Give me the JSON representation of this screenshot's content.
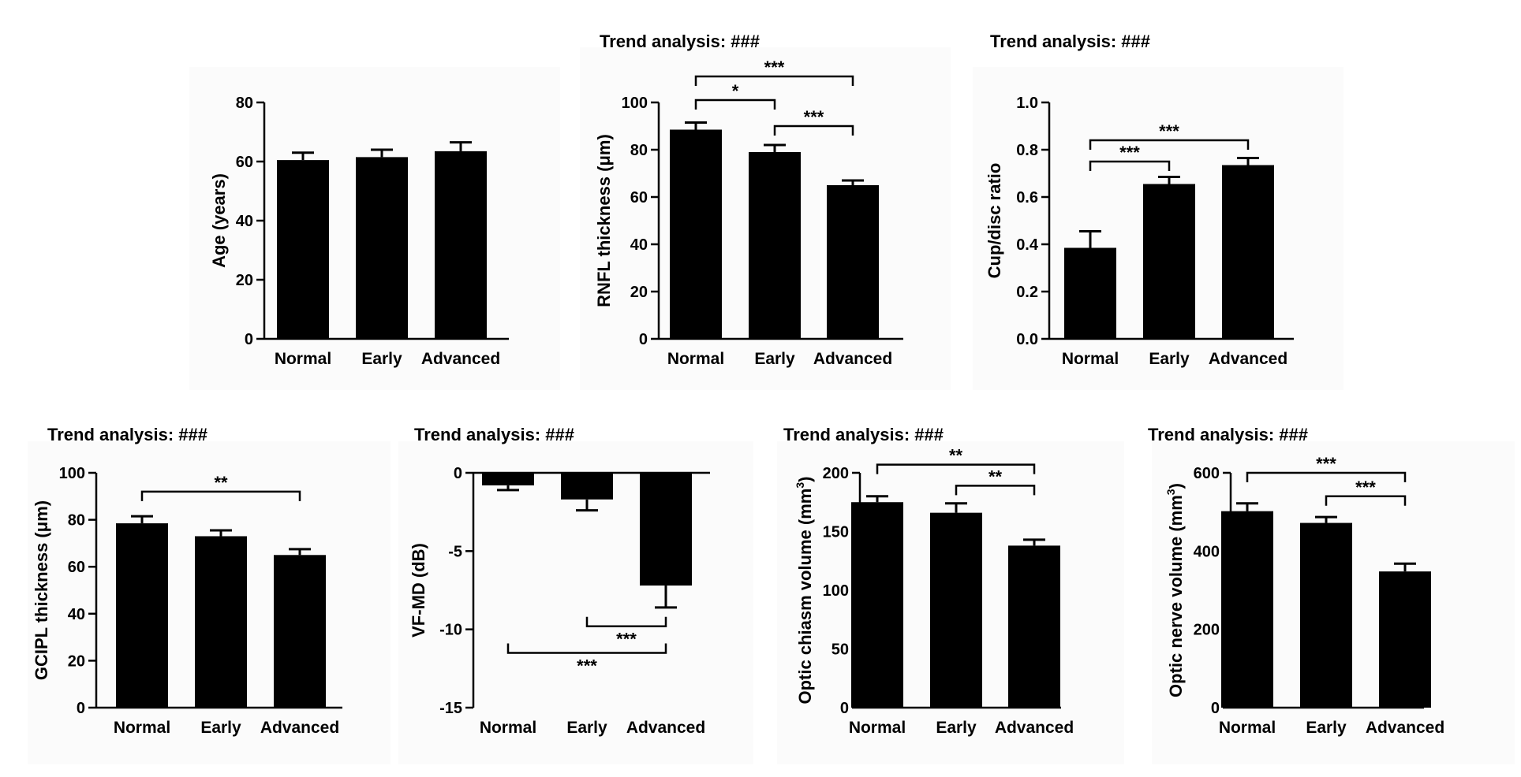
{
  "figure": {
    "chart_data": [
      {
        "type": "bar",
        "id": "age",
        "trend_label": "",
        "ylabel": "Age (years)",
        "ylabel_sup": "",
        "ylabel_after": "",
        "categories": [
          "Normal",
          "Early",
          "Advanced"
        ],
        "values": [
          60.5,
          61.5,
          63.5
        ],
        "errors": [
          2.5,
          2.5,
          3.0
        ],
        "ylim": [
          0,
          80
        ],
        "yticks": [
          0,
          20,
          40,
          60,
          80
        ],
        "yticklabels": [
          "0",
          "20",
          "40",
          "60",
          "80"
        ],
        "significance": []
      },
      {
        "type": "bar",
        "id": "rnfl",
        "trend_label": "Trend analysis:  ###",
        "ylabel": "RNFL thickness (μm)",
        "ylabel_sup": "",
        "ylabel_after": "",
        "categories": [
          "Normal",
          "Early",
          "Advanced"
        ],
        "values": [
          88.5,
          79,
          65
        ],
        "errors": [
          3.0,
          3.0,
          2.0
        ],
        "ylim": [
          0,
          100
        ],
        "yticks": [
          0,
          20,
          40,
          60,
          80,
          100
        ],
        "yticklabels": [
          "0",
          "20",
          "40",
          "60",
          "80",
          "100"
        ],
        "significance": [
          {
            "from": 0,
            "to": 2,
            "y": 111,
            "label": "***"
          },
          {
            "from": 0,
            "to": 1,
            "y": 101,
            "label": "*"
          },
          {
            "from": 1,
            "to": 2,
            "y": 90,
            "label": "***"
          }
        ]
      },
      {
        "type": "bar",
        "id": "cupdisc",
        "trend_label": "Trend analysis:  ###",
        "ylabel": "Cup/disc ratio",
        "ylabel_sup": "",
        "ylabel_after": "",
        "categories": [
          "Normal",
          "Early",
          "Advanced"
        ],
        "values": [
          0.385,
          0.655,
          0.735
        ],
        "errors": [
          0.07,
          0.03,
          0.03
        ],
        "ylim": [
          0,
          1.0
        ],
        "yticks": [
          0,
          0.2,
          0.4,
          0.6,
          0.8,
          1.0
        ],
        "yticklabels": [
          "0.0",
          "0.2",
          "0.4",
          "0.6",
          "0.8",
          "1.0"
        ],
        "significance": [
          {
            "from": 0,
            "to": 2,
            "y": 0.84,
            "label": "***"
          },
          {
            "from": 0,
            "to": 1,
            "y": 0.75,
            "label": "***"
          }
        ]
      },
      {
        "type": "bar",
        "id": "gcipl",
        "trend_label": "Trend analysis:  ###",
        "ylabel": "GCIPL thickness (μm)",
        "ylabel_sup": "",
        "ylabel_after": "",
        "categories": [
          "Normal",
          "Early",
          "Advanced"
        ],
        "values": [
          78.5,
          73,
          65
        ],
        "errors": [
          3.0,
          2.5,
          2.5
        ],
        "ylim": [
          0,
          100
        ],
        "yticks": [
          0,
          20,
          40,
          60,
          80,
          100
        ],
        "yticklabels": [
          "0",
          "20",
          "40",
          "60",
          "80",
          "100"
        ],
        "significance": [
          {
            "from": 0,
            "to": 2,
            "y": 92,
            "label": "**"
          }
        ]
      },
      {
        "type": "bar",
        "id": "vfmd",
        "trend_label": "Trend analysis:  ###",
        "ylabel": "VF-MD (dB)",
        "ylabel_sup": "",
        "ylabel_after": "",
        "categories": [
          "Normal",
          "Early",
          "Advanced"
        ],
        "values": [
          -0.8,
          -1.7,
          -7.2
        ],
        "errors": [
          0.3,
          0.7,
          1.4
        ],
        "ylim": [
          -15,
          0
        ],
        "yticks": [
          -15,
          -10,
          -5,
          0
        ],
        "yticklabels": [
          "-15",
          "-10",
          "-5",
          "0"
        ],
        "significance": [
          {
            "from": 1,
            "to": 2,
            "y": -9.8,
            "label": "***",
            "below": true
          },
          {
            "from": 0,
            "to": 2,
            "y": -11.5,
            "label": "***",
            "below": true
          }
        ]
      },
      {
        "type": "bar",
        "id": "chiasm",
        "trend_label": "Trend analysis:  ###",
        "ylabel": "Optic chiasm volume (mm",
        "ylabel_sup": "3",
        "ylabel_after": ")",
        "categories": [
          "Normal",
          "Early",
          "Advanced"
        ],
        "values": [
          175,
          166,
          138
        ],
        "errors": [
          5,
          8,
          5
        ],
        "ylim": [
          0,
          200
        ],
        "yticks": [
          0,
          50,
          100,
          150,
          200
        ],
        "yticklabels": [
          "0",
          "50",
          "100",
          "150",
          "200"
        ],
        "significance": [
          {
            "from": 0,
            "to": 2,
            "y": 207,
            "label": "**"
          },
          {
            "from": 1,
            "to": 2,
            "y": 189,
            "label": "**"
          }
        ]
      },
      {
        "type": "bar",
        "id": "nerve",
        "trend_label": "Trend analysis:  ###",
        "ylabel": "Optic nerve volume (mm",
        "ylabel_sup": "3",
        "ylabel_after": ")",
        "categories": [
          "Normal",
          "Early",
          "Advanced"
        ],
        "values": [
          502,
          472,
          348
        ],
        "errors": [
          20,
          15,
          20
        ],
        "ylim": [
          0,
          600
        ],
        "yticks": [
          0,
          200,
          400,
          600
        ],
        "yticklabels": [
          "0",
          "200",
          "400",
          "600"
        ],
        "significance": [
          {
            "from": 0,
            "to": 2,
            "y": 600,
            "label": "***"
          },
          {
            "from": 1,
            "to": 2,
            "y": 540,
            "label": "***"
          }
        ]
      }
    ]
  }
}
